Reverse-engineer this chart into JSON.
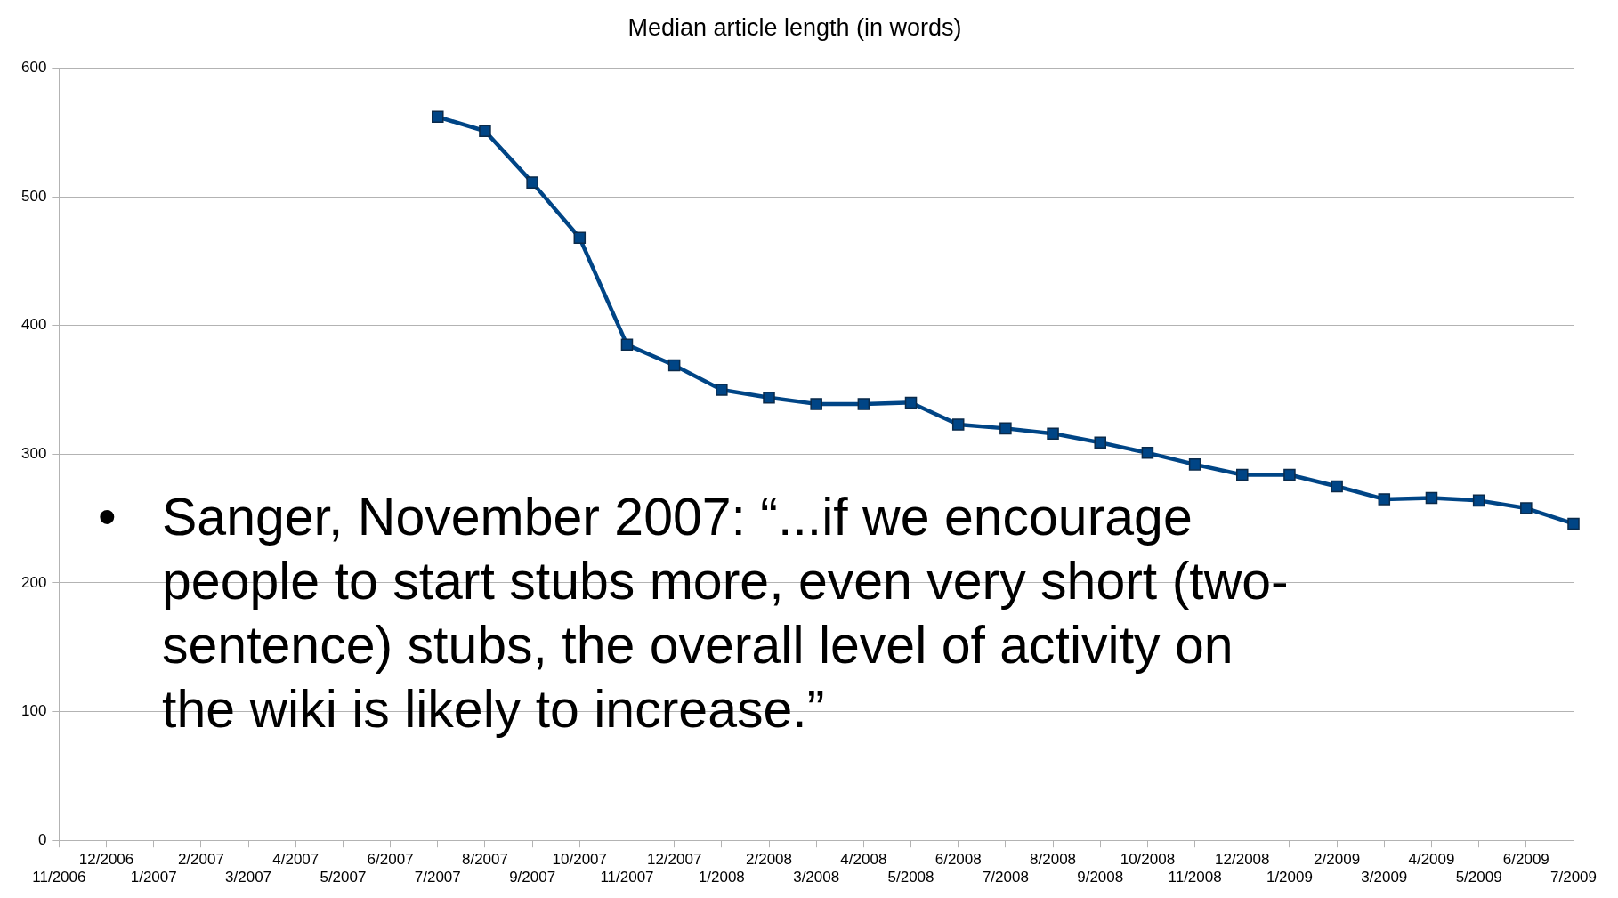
{
  "chart_data": {
    "type": "line",
    "title": "Median article length (in words)",
    "categories": [
      "11/2006",
      "12/2006",
      "1/2007",
      "2/2007",
      "3/2007",
      "4/2007",
      "5/2007",
      "6/2007",
      "7/2007",
      "8/2007",
      "9/2007",
      "10/2007",
      "11/2007",
      "12/2007",
      "1/2008",
      "2/2008",
      "3/2008",
      "4/2008",
      "5/2008",
      "6/2008",
      "7/2008",
      "8/2008",
      "9/2008",
      "10/2008",
      "11/2008",
      "12/2008",
      "1/2009",
      "2/2009",
      "3/2009",
      "4/2009",
      "5/2009",
      "6/2009",
      "7/2009"
    ],
    "series": [
      {
        "color": "#004586",
        "values": [
          null,
          null,
          null,
          null,
          null,
          null,
          null,
          null,
          562,
          551,
          511,
          468,
          385,
          369,
          350,
          344,
          339,
          339,
          340,
          323,
          320,
          316,
          309,
          301,
          292,
          284,
          284,
          275,
          265,
          266,
          264,
          258,
          246
        ]
      }
    ],
    "ylim": [
      0,
      600
    ],
    "yticks": [
      0,
      100,
      200,
      300,
      400,
      500,
      600
    ],
    "grid": "y",
    "legend": false,
    "marker": "square",
    "line_style": "solid",
    "annotations": [
      "•",
      "Sanger, November 2007: “...if we encourage people to start stubs more, even very short (two-sentence) stubs, the overall level of activity on the wiki is likely to increase.”"
    ]
  }
}
